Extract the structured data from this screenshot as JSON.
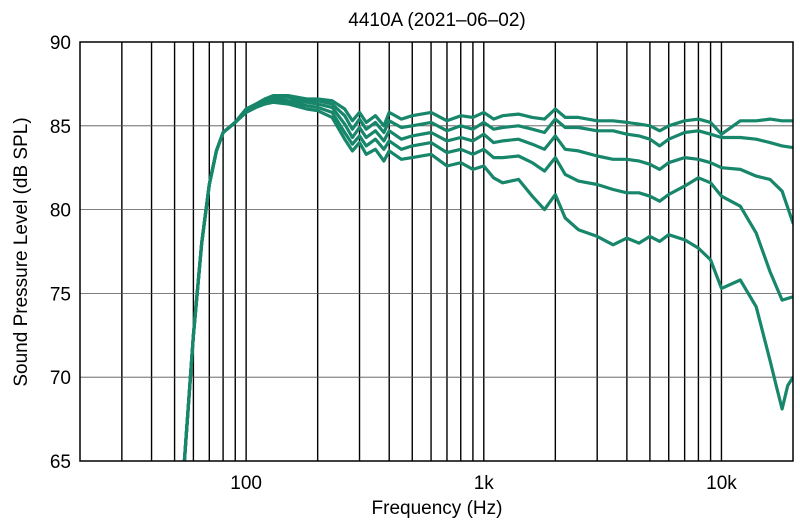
{
  "chart_data": {
    "type": "line",
    "title": "4410A (2021–06–02)",
    "xlabel": "Frequency (Hz)",
    "ylabel": "Sound Pressure Level (dB SPL)",
    "x_scale": "log",
    "xlim": [
      20,
      20000
    ],
    "ylim": [
      65,
      90
    ],
    "x_ticks": [
      {
        "value": 100,
        "label": "100"
      },
      {
        "value": 1000,
        "label": "1k"
      },
      {
        "value": 10000,
        "label": "10k"
      }
    ],
    "y_ticks": [
      {
        "value": 65,
        "label": "65"
      },
      {
        "value": 70,
        "label": "70"
      },
      {
        "value": 75,
        "label": "75"
      },
      {
        "value": 80,
        "label": "80"
      },
      {
        "value": 85,
        "label": "85"
      },
      {
        "value": 90,
        "label": "90"
      }
    ],
    "grid": true,
    "line_color": "#17866a",
    "series": [
      {
        "x": [
          55,
          60,
          65,
          70,
          75,
          80,
          90,
          100,
          110,
          120,
          130,
          150,
          180,
          200,
          230,
          260,
          280,
          300,
          320,
          350,
          380,
          400,
          450,
          500,
          600,
          700,
          800,
          900,
          1000,
          1100,
          1200,
          1400,
          1600,
          1800,
          2000,
          2200,
          2500,
          3000,
          3500,
          4000,
          4500,
          5000,
          5500,
          6000,
          7000,
          8000,
          9000,
          10000,
          12000,
          14000,
          16000,
          18000,
          20000
        ],
        "y": [
          65.0,
          72.5,
          78.0,
          81.5,
          83.5,
          84.6,
          85.2,
          86.0,
          86.3,
          86.6,
          86.8,
          86.8,
          86.6,
          86.6,
          86.5,
          86.0,
          85.3,
          85.8,
          85.2,
          85.6,
          85.0,
          85.8,
          85.4,
          85.6,
          85.8,
          85.3,
          85.6,
          85.5,
          85.8,
          85.4,
          85.6,
          85.7,
          85.5,
          85.4,
          86.0,
          85.5,
          85.5,
          85.3,
          85.3,
          85.2,
          85.1,
          85.0,
          84.7,
          85.0,
          85.3,
          85.4,
          85.2,
          84.5,
          85.3,
          85.3,
          85.4,
          85.3,
          85.3
        ]
      },
      {
        "x": [
          55,
          60,
          65,
          70,
          75,
          80,
          90,
          100,
          110,
          120,
          130,
          150,
          180,
          200,
          230,
          260,
          280,
          300,
          320,
          350,
          380,
          400,
          450,
          500,
          600,
          700,
          800,
          900,
          1000,
          1100,
          1200,
          1400,
          1600,
          1800,
          2000,
          2200,
          2500,
          3000,
          3500,
          4000,
          4500,
          5000,
          5500,
          6000,
          7000,
          8000,
          9000,
          10000,
          12000,
          14000,
          16000,
          18000,
          20000
        ],
        "y": [
          65.0,
          72.5,
          78.0,
          81.5,
          83.5,
          84.6,
          85.2,
          86.0,
          86.3,
          86.6,
          86.7,
          86.7,
          86.5,
          86.5,
          86.3,
          85.6,
          84.8,
          85.4,
          84.8,
          85.2,
          84.6,
          85.3,
          84.9,
          85.0,
          85.2,
          84.7,
          85.0,
          84.8,
          85.2,
          84.8,
          84.9,
          85.0,
          84.8,
          84.6,
          85.4,
          84.9,
          84.9,
          84.7,
          84.7,
          84.5,
          84.4,
          84.2,
          83.8,
          84.2,
          84.6,
          84.7,
          84.5,
          84.3,
          84.3,
          84.2,
          84.0,
          83.8,
          83.7
        ]
      },
      {
        "x": [
          55,
          60,
          65,
          70,
          75,
          80,
          90,
          100,
          110,
          120,
          130,
          150,
          180,
          200,
          230,
          260,
          280,
          300,
          320,
          350,
          380,
          400,
          450,
          500,
          600,
          700,
          800,
          900,
          1000,
          1100,
          1200,
          1400,
          1600,
          1800,
          2000,
          2200,
          2500,
          3000,
          3500,
          4000,
          4500,
          5000,
          5500,
          6000,
          7000,
          8000,
          9000,
          10000,
          12000,
          14000,
          16000,
          18000,
          20000
        ],
        "y": [
          65.0,
          72.5,
          78.0,
          81.5,
          83.5,
          84.6,
          85.2,
          85.9,
          86.2,
          86.5,
          86.6,
          86.5,
          86.4,
          86.3,
          86.1,
          85.1,
          84.3,
          84.9,
          84.3,
          84.7,
          84.1,
          84.7,
          84.2,
          84.4,
          84.6,
          84.1,
          84.3,
          84.1,
          84.5,
          84.0,
          84.1,
          84.2,
          83.9,
          83.6,
          84.4,
          83.6,
          83.5,
          83.2,
          83.0,
          83.0,
          82.9,
          82.7,
          82.4,
          82.8,
          83.1,
          83.0,
          82.8,
          82.5,
          82.4,
          82.0,
          81.8,
          81.1,
          79.2
        ]
      },
      {
        "x": [
          55,
          60,
          65,
          70,
          75,
          80,
          90,
          100,
          110,
          120,
          130,
          150,
          180,
          200,
          230,
          260,
          280,
          300,
          320,
          350,
          380,
          400,
          450,
          500,
          600,
          700,
          800,
          900,
          1000,
          1100,
          1200,
          1400,
          1600,
          1800,
          2000,
          2200,
          2500,
          3000,
          3500,
          4000,
          4500,
          5000,
          5500,
          6000,
          7000,
          8000,
          9000,
          10000,
          12000,
          14000,
          16000,
          18000,
          20000
        ],
        "y": [
          65.0,
          72.5,
          78.0,
          81.5,
          83.5,
          84.6,
          85.2,
          85.9,
          86.2,
          86.4,
          86.5,
          86.4,
          86.2,
          86.1,
          85.8,
          84.6,
          83.9,
          84.4,
          83.8,
          84.2,
          83.6,
          84.1,
          83.6,
          83.8,
          84.0,
          83.4,
          83.6,
          83.3,
          83.6,
          83.1,
          83.1,
          83.2,
          82.8,
          82.3,
          83.1,
          82.1,
          81.7,
          81.5,
          81.2,
          81.0,
          81.0,
          80.8,
          80.5,
          80.9,
          81.4,
          81.9,
          81.6,
          80.8,
          80.2,
          78.6,
          76.3,
          74.6,
          74.8
        ]
      },
      {
        "x": [
          55,
          60,
          65,
          70,
          75,
          80,
          90,
          100,
          110,
          120,
          130,
          150,
          180,
          200,
          230,
          260,
          280,
          300,
          320,
          350,
          380,
          400,
          450,
          500,
          600,
          700,
          800,
          900,
          1000,
          1100,
          1200,
          1400,
          1600,
          1800,
          2000,
          2200,
          2500,
          3000,
          3500,
          4000,
          4500,
          5000,
          5500,
          6000,
          7000,
          8000,
          9000,
          10000,
          12000,
          14000,
          16000,
          17000,
          18000,
          19000,
          20000
        ],
        "y": [
          65.0,
          72.5,
          78.0,
          81.5,
          83.5,
          84.6,
          85.2,
          85.8,
          86.1,
          86.3,
          86.4,
          86.3,
          86.0,
          85.9,
          85.5,
          84.2,
          83.5,
          84.0,
          83.3,
          83.6,
          82.9,
          83.5,
          83.0,
          83.1,
          83.3,
          82.6,
          82.8,
          82.4,
          82.6,
          81.9,
          81.6,
          81.8,
          80.8,
          80.0,
          80.9,
          79.5,
          78.8,
          78.4,
          77.9,
          78.3,
          78.0,
          78.4,
          78.1,
          78.5,
          78.2,
          77.7,
          77.0,
          75.3,
          75.8,
          74.2,
          71.0,
          69.5,
          68.1,
          69.5,
          70.0
        ]
      }
    ]
  }
}
